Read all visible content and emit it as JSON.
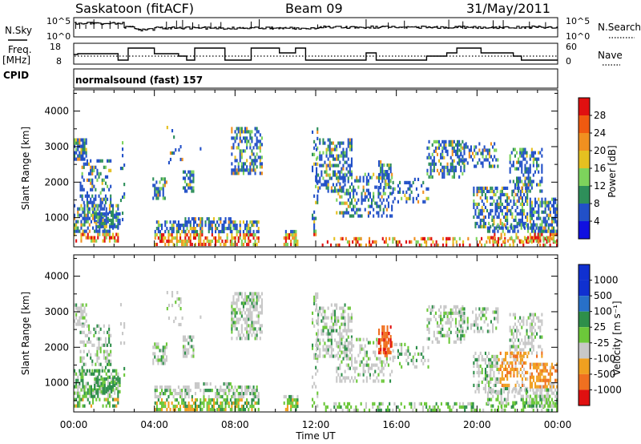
{
  "header": {
    "station": "Saskatoon (fitACF)",
    "beam": "Beam 09",
    "date": "31/May/2011"
  },
  "strip_noise": {
    "left_label": "N.Sky",
    "right_label": "N.Search",
    "left_ticks": [
      "10^5",
      "10^0"
    ],
    "right_ticks": [
      "10^5",
      "10^0"
    ]
  },
  "strip_freq": {
    "left_label_1": "Freq.",
    "left_label_2": "[MHz]",
    "right_label": "Nave",
    "left_ticks": [
      "18",
      "8"
    ],
    "right_ticks": [
      "60",
      "0"
    ],
    "freq_ylim": [
      8,
      18
    ],
    "nave_ylim": [
      0,
      60
    ]
  },
  "cpid": {
    "label": "CPID",
    "text": "normalsound (fast) 157"
  },
  "chart_data": [
    {
      "type": "heatmap",
      "name": "power",
      "ylabel": "Slant Range [km]",
      "y_ticks": [
        "1000",
        "2000",
        "3000",
        "4000"
      ],
      "ylim": [
        180,
        4600
      ],
      "colorbar_label": "Power [dB]",
      "colorbar_ticks": [
        "4",
        "8",
        "12",
        "16",
        "20",
        "24",
        "28"
      ],
      "colorbar_range": [
        0,
        32
      ],
      "colorbar_colors": [
        "#1010e0",
        "#2250c8",
        "#2e8f5a",
        "#7dd35c",
        "#e5c020",
        "#f09020",
        "#f05a10",
        "#e01010"
      ]
    },
    {
      "type": "heatmap",
      "name": "velocity",
      "ylabel": "Slant Range [km]",
      "y_ticks": [
        "1000",
        "2000",
        "3000",
        "4000"
      ],
      "ylim": [
        180,
        4600
      ],
      "colorbar_label": "Velocity [m s⁻¹]",
      "colorbar_ticks": [
        "1000",
        "500",
        "100",
        "25",
        "-25",
        "-100",
        "-500",
        "-1000"
      ],
      "colorbar_colors": [
        "#1030d0",
        "#2870c8",
        "#2e8f4a",
        "#6cc83a",
        "#c8c8c8",
        "#f0a020",
        "#f07020",
        "#e01010"
      ]
    }
  ],
  "time_axis": {
    "label": "Time UT",
    "ticks": [
      "00:00",
      "04:00",
      "08:00",
      "12:00",
      "16:00",
      "20:00",
      "00:00"
    ],
    "xlim": [
      0,
      24
    ]
  },
  "colors": {
    "frame": "#000000",
    "ground_scatter": "#c8c8c8"
  }
}
